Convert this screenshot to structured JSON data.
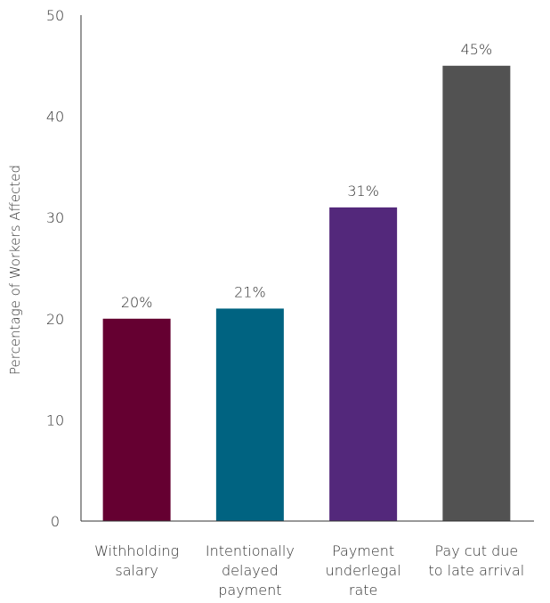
{
  "chart_data": {
    "type": "bar",
    "title": "",
    "xlabel": "",
    "ylabel": "Percentage of Workers Affected",
    "ylim": [
      0,
      50
    ],
    "yticks": [
      0,
      10,
      20,
      30,
      40,
      50
    ],
    "grid": false,
    "legend": "none",
    "categories": [
      [
        "Withholding",
        "salary"
      ],
      [
        "Intentionally",
        "delayed",
        "payment"
      ],
      [
        "Payment",
        "underlegal",
        "rate"
      ],
      [
        "Pay cut due",
        "to late arrival"
      ]
    ],
    "values": [
      20,
      21,
      31,
      45
    ],
    "data_labels": [
      "20%",
      "21%",
      "31%",
      "45%"
    ],
    "colors": [
      "#650031",
      "#006381",
      "#53287b",
      "#525252"
    ]
  }
}
